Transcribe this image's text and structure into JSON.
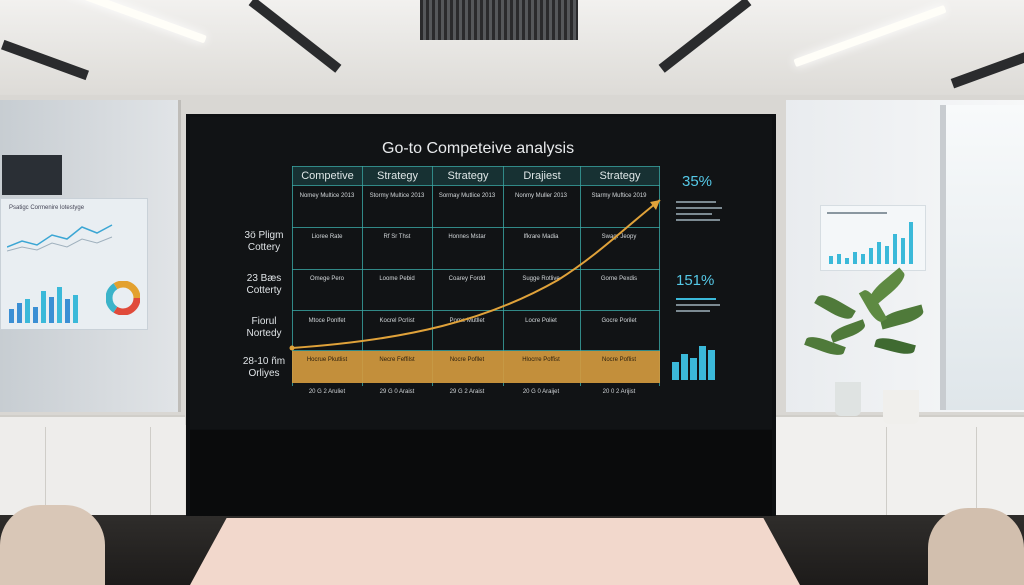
{
  "screen": {
    "title": "Go-to Competeive analysis",
    "headers": [
      "Competive",
      "Strategy",
      "Strategy",
      "Drajiest",
      "Strategy"
    ],
    "row_labels": [
      "3ö Pligm Cottery",
      "23 Bæs Cotterty",
      "Fiorul Nortedy",
      "28-10 ñm Orliyes"
    ],
    "rows": [
      [
        "Nomey Multice 2013",
        "Stormy Multice 2013",
        "Sormay Mutlice 2013",
        "Nonmy Muller 2013",
        "Starmy Muftice 2019"
      ],
      [
        "Lioree Rate",
        "Rf Sr Thst",
        "Honnes Mstar",
        "Ifkrare Madia",
        "Swagr Jeopy"
      ],
      [
        "Omege Pero",
        "Loome Pebid",
        "Coarey Fordd",
        "Sugge Rotlive",
        "Gorne Pexdis"
      ],
      [
        "Mtoce Ponlfet",
        "Kocrel Pcrlist",
        "Pome Mutllet",
        "Locre Poliet",
        "Gocre Porilet"
      ],
      [
        "Hocrue Pkutlist",
        "Necre Feffilst",
        "Nocre Pofllet",
        "Hlocrre Poffist",
        "Nocre Poflist"
      ]
    ],
    "footer": [
      "20 G 2 Aruliet",
      "29 G 0 Araist",
      "29 G 2 Araist",
      "20 G 0 Araijet",
      "20 0 2 Arijist"
    ],
    "kpi_top": "35%",
    "kpi_bottom": "151%",
    "accent": "#d29a3f",
    "teal": "#3aa7a4"
  },
  "left_panel": {
    "title": "Psatigc Cormenire lotestyge"
  },
  "icons": [
    "trend-arrow-icon",
    "bar-chart-icon",
    "pie-chart-icon"
  ]
}
